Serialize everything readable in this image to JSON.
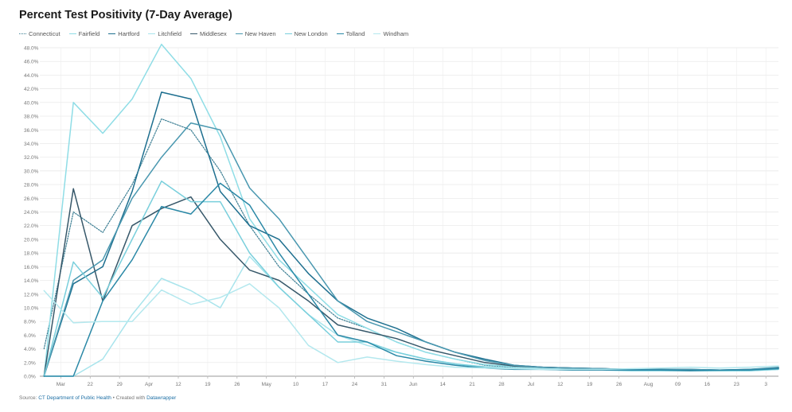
{
  "chart_data": {
    "type": "line",
    "title": "Percent Test Positivity (7-Day Average)",
    "xlabel": "",
    "ylabel": "",
    "ylim": [
      0,
      48
    ],
    "grid": true,
    "legend_position": "top-left",
    "y_ticks": [
      "0.0%",
      "2.0%",
      "4.0%",
      "6.0%",
      "8.0%",
      "10.0%",
      "12.0%",
      "14.0%",
      "16.0%",
      "18.0%",
      "20.0%",
      "22.0%",
      "24.0%",
      "26.0%",
      "28.0%",
      "30.0%",
      "32.0%",
      "34.0%",
      "36.0%",
      "38.0%",
      "40.0%",
      "42.0%",
      "44.0%",
      "46.0%",
      "48.0%"
    ],
    "y_tick_values": [
      0,
      2,
      4,
      6,
      8,
      10,
      12,
      14,
      16,
      18,
      20,
      22,
      24,
      26,
      28,
      30,
      32,
      34,
      36,
      38,
      40,
      42,
      44,
      46,
      48
    ],
    "x_ticks": [
      "Mar",
      "22",
      "29",
      "Apr",
      "12",
      "19",
      "26",
      "May",
      "10",
      "17",
      "24",
      "31",
      "Jun",
      "14",
      "21",
      "28",
      "Jul",
      "12",
      "19",
      "26",
      "Aug",
      "09",
      "16",
      "23",
      "3"
    ],
    "x_tick_dates": [
      "2020-03-15",
      "2020-03-22",
      "2020-03-29",
      "2020-04-05",
      "2020-04-12",
      "2020-04-19",
      "2020-04-26",
      "2020-05-03",
      "2020-05-10",
      "2020-05-17",
      "2020-05-24",
      "2020-05-31",
      "2020-06-07",
      "2020-06-14",
      "2020-06-21",
      "2020-06-28",
      "2020-07-05",
      "2020-07-12",
      "2020-07-19",
      "2020-07-26",
      "2020-08-02",
      "2020-08-09",
      "2020-08-16",
      "2020-08-23",
      "2020-08-30"
    ],
    "x": [
      "2020-03-11",
      "2020-03-18",
      "2020-03-25",
      "2020-04-01",
      "2020-04-08",
      "2020-04-15",
      "2020-04-22",
      "2020-04-29",
      "2020-05-06",
      "2020-05-13",
      "2020-05-20",
      "2020-05-27",
      "2020-06-03",
      "2020-06-10",
      "2020-06-17",
      "2020-06-24",
      "2020-07-01",
      "2020-07-08",
      "2020-07-15",
      "2020-07-22",
      "2020-07-29",
      "2020-08-05",
      "2020-08-12",
      "2020-08-19",
      "2020-08-26",
      "2020-09-02"
    ],
    "series": [
      {
        "name": "Connecticut",
        "color": "#3a7d92",
        "dashed": true,
        "values": [
          4,
          24,
          21,
          28,
          37.6,
          36,
          30,
          22,
          16,
          12,
          8.5,
          7,
          5,
          3.5,
          2.5,
          1.6,
          1.3,
          1.1,
          1.0,
          1.0,
          0.9,
          0.9,
          0.9,
          0.8,
          0.8,
          1.0
        ]
      },
      {
        "name": "Fairfield",
        "color": "#8fdde6",
        "values": [
          0,
          40,
          35.5,
          40.5,
          48.5,
          43.5,
          35,
          23,
          17,
          13,
          9,
          7,
          5,
          3.5,
          2.5,
          1.7,
          1.4,
          1.2,
          1.1,
          1.0,
          1.0,
          0.9,
          0.9,
          0.8,
          0.9,
          1.1
        ]
      },
      {
        "name": "Hartford",
        "color": "#1e6f8f",
        "values": [
          0,
          13.5,
          16,
          27,
          41.5,
          40.5,
          27,
          22,
          20,
          15,
          11,
          8.5,
          7,
          5,
          3.5,
          2.5,
          1.6,
          1.3,
          1.2,
          1.1,
          1.0,
          1.0,
          1.0,
          0.9,
          1.0,
          1.2
        ]
      },
      {
        "name": "Litchfield",
        "color": "#a8e4ec",
        "values": [
          0,
          0,
          2.5,
          9,
          14.3,
          12.5,
          10,
          17.5,
          13,
          9,
          6,
          4.5,
          3.5,
          2.5,
          1.8,
          1.4,
          1.2,
          1.1,
          1.0,
          0.9,
          0.9,
          0.9,
          0.8,
          0.8,
          0.8,
          1.0
        ]
      },
      {
        "name": "Middlesex",
        "color": "#37586a",
        "values": [
          0,
          27.4,
          11,
          22,
          24.5,
          26.2,
          20,
          15.5,
          14,
          11,
          7.5,
          6.5,
          5.5,
          4,
          3,
          2,
          1.5,
          1.3,
          1.2,
          1.1,
          1.0,
          1.0,
          0.9,
          0.8,
          0.9,
          1.2
        ]
      },
      {
        "name": "New Haven",
        "color": "#4a98b0",
        "values": [
          0,
          14,
          17,
          26,
          32,
          37,
          36,
          27.5,
          23,
          17,
          11,
          8,
          6.5,
          5,
          3.5,
          2.3,
          1.6,
          1.3,
          1.2,
          1.1,
          1.0,
          1.0,
          1.0,
          0.9,
          1.0,
          1.3
        ]
      },
      {
        "name": "New London",
        "color": "#79cfdc",
        "values": [
          0,
          16.7,
          11.5,
          20,
          28.5,
          25.5,
          25.5,
          18,
          13,
          9,
          5,
          5,
          3.5,
          2.5,
          1.8,
          1.3,
          1.1,
          1.0,
          0.9,
          0.9,
          0.8,
          0.8,
          0.8,
          0.8,
          0.8,
          1.0
        ]
      },
      {
        "name": "Tolland",
        "color": "#2a88a6",
        "values": [
          0,
          0,
          11,
          17,
          24.8,
          23.7,
          28.2,
          25,
          18,
          12,
          6,
          5,
          3,
          2.2,
          1.6,
          1.2,
          1.0,
          1.0,
          0.9,
          0.9,
          0.9,
          0.9,
          0.8,
          0.9,
          0.9,
          1.1
        ]
      },
      {
        "name": "Windham",
        "color": "#b4e8ee",
        "values": [
          12.5,
          7.8,
          8,
          8,
          12.6,
          10.5,
          11.5,
          13.5,
          10,
          4.5,
          2,
          2.8,
          2.2,
          1.7,
          1.3,
          1.2,
          1.1,
          1.0,
          1.0,
          1.0,
          1.1,
          1.2,
          1.3,
          1.2,
          1.3,
          1.5
        ]
      }
    ]
  },
  "source": {
    "prefix": "Source: ",
    "org": "CT Department of Public Health",
    "middle": " • Created with ",
    "tool": "Datawrapper"
  }
}
